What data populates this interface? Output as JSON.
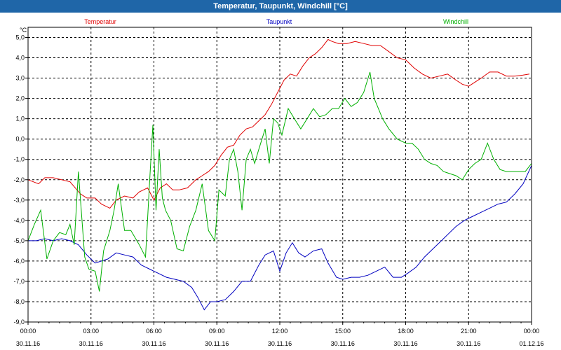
{
  "window": {
    "title": "Temperatur, Taupunkt, Windchill [°C]"
  },
  "chart_data": {
    "type": "line",
    "title": "Temperatur, Taupunkt, Windchill [°C]",
    "ylabel": "°C",
    "ylim": [
      -9.0,
      5.5
    ],
    "xlim": [
      0,
      24
    ],
    "grid": true,
    "legend_placement": "top",
    "y_ticks": [
      "5,0",
      "4,0",
      "3,0",
      "2,0",
      "1,0",
      "0,0",
      "-1,0",
      "-2,0",
      "-3,0",
      "-4,0",
      "-5,0",
      "-6,0",
      "-7,0",
      "-8,0",
      "-9,0"
    ],
    "x_ticks": [
      {
        "time": "00:00",
        "date": "30.11.16"
      },
      {
        "time": "03:00",
        "date": "30.11.16"
      },
      {
        "time": "06:00",
        "date": "30.11.16"
      },
      {
        "time": "09:00",
        "date": "30.11.16"
      },
      {
        "time": "12:00",
        "date": "30.11.16"
      },
      {
        "time": "15:00",
        "date": "30.11.16"
      },
      {
        "time": "18:00",
        "date": "30.11.16"
      },
      {
        "time": "21:00",
        "date": "30.11.16"
      },
      {
        "time": "00:00",
        "date": "01.12.16"
      }
    ],
    "series": [
      {
        "name": "Temperatur",
        "color": "#e00000",
        "x": [
          0,
          0.5,
          0.8,
          1.2,
          1.6,
          2,
          2.5,
          2.8,
          3.2,
          3.5,
          3.9,
          4.2,
          4.6,
          5,
          5.3,
          5.7,
          5.9,
          6,
          6.3,
          6.6,
          6.9,
          7.2,
          7.6,
          8,
          8.3,
          8.6,
          8.9,
          9.2,
          9.5,
          9.8,
          10.1,
          10.4,
          10.7,
          11,
          11.3,
          11.6,
          11.9,
          12.2,
          12.5,
          12.8,
          13.1,
          13.4,
          13.7,
          14,
          14.3,
          14.5,
          14.8,
          15.2,
          15.6,
          16,
          16.4,
          16.8,
          17.2,
          17.6,
          18,
          18.4,
          18.8,
          19.2,
          19.6,
          20,
          20.4,
          20.7,
          21,
          21.3,
          21.6,
          22,
          22.4,
          22.8,
          23.2,
          23.6,
          23.9
        ],
        "values": [
          -2.0,
          -2.2,
          -1.9,
          -1.9,
          -2.0,
          -2.1,
          -2.7,
          -2.9,
          -2.9,
          -3.2,
          -3.4,
          -3.0,
          -2.8,
          -2.9,
          -2.6,
          -2.4,
          -2.8,
          -3.0,
          -2.4,
          -2.2,
          -2.5,
          -2.5,
          -2.4,
          -2.0,
          -1.8,
          -1.6,
          -1.3,
          -0.8,
          -0.4,
          -0.3,
          0.2,
          0.5,
          0.6,
          0.9,
          1.2,
          1.7,
          2.3,
          2.9,
          3.2,
          3.1,
          3.6,
          4.0,
          4.2,
          4.5,
          4.9,
          4.8,
          4.7,
          4.7,
          4.8,
          4.7,
          4.6,
          4.6,
          4.3,
          4.0,
          3.9,
          3.5,
          3.2,
          3.0,
          3.1,
          3.2,
          2.9,
          2.7,
          2.6,
          2.8,
          3.0,
          3.3,
          3.3,
          3.1,
          3.1,
          3.15,
          3.2
        ]
      },
      {
        "name": "Taupunkt",
        "color": "#0000c0",
        "x": [
          0,
          0.4,
          0.8,
          1.2,
          1.6,
          2,
          2.4,
          2.8,
          3.2,
          3.5,
          3.8,
          4.2,
          4.6,
          5,
          5.4,
          5.8,
          6,
          6.2,
          6.6,
          7,
          7.4,
          7.8,
          8.1,
          8.4,
          8.7,
          9,
          9.4,
          9.8,
          10.2,
          10.6,
          11,
          11.3,
          11.7,
          12,
          12.3,
          12.6,
          12.9,
          13.2,
          13.6,
          14,
          14.3,
          14.7,
          15,
          15.4,
          15.8,
          16.2,
          16.6,
          17,
          17.4,
          17.8,
          18.1,
          18.5,
          18.9,
          19.3,
          19.7,
          20,
          20.4,
          20.8,
          21.2,
          21.6,
          22,
          22.4,
          22.8,
          23.2,
          23.6,
          24
        ],
        "values": [
          -5.0,
          -5.0,
          -4.9,
          -5.0,
          -4.9,
          -5.0,
          -5.2,
          -5.7,
          -6.1,
          -6.0,
          -5.9,
          -5.6,
          -5.7,
          -5.8,
          -6.2,
          -6.4,
          -6.5,
          -6.6,
          -6.8,
          -6.9,
          -7.0,
          -7.3,
          -7.8,
          -8.4,
          -8.0,
          -8.0,
          -7.9,
          -7.5,
          -7.0,
          -7.0,
          -6.2,
          -5.7,
          -5.5,
          -6.5,
          -5.6,
          -5.1,
          -5.6,
          -5.8,
          -5.5,
          -5.4,
          -6.1,
          -6.8,
          -6.9,
          -6.8,
          -6.8,
          -6.7,
          -6.5,
          -6.3,
          -6.8,
          -6.8,
          -6.6,
          -6.3,
          -5.8,
          -5.4,
          -5.0,
          -4.7,
          -4.3,
          -4.0,
          -3.8,
          -3.6,
          -3.4,
          -3.2,
          -3.1,
          -2.7,
          -2.2,
          -1.3
        ]
      },
      {
        "name": "Windchill",
        "color": "#00b000",
        "x": [
          0,
          0.3,
          0.6,
          0.9,
          1.2,
          1.5,
          1.8,
          2,
          2.2,
          2.4,
          2.7,
          2.9,
          3.2,
          3.4,
          3.6,
          3.9,
          4.1,
          4.3,
          4.6,
          4.9,
          5.3,
          5.6,
          5.8,
          5.95,
          6.1,
          6.25,
          6.4,
          6.55,
          6.8,
          7.1,
          7.4,
          7.7,
          8,
          8.3,
          8.6,
          8.9,
          9.1,
          9.4,
          9.6,
          9.8,
          10,
          10.2,
          10.4,
          10.6,
          10.8,
          11,
          11.3,
          11.5,
          11.7,
          11.9,
          12.1,
          12.4,
          12.7,
          13,
          13.3,
          13.6,
          13.9,
          14.2,
          14.5,
          14.8,
          15.1,
          15.4,
          15.7,
          16,
          16.3,
          16.5,
          16.7,
          16.9,
          17.2,
          17.6,
          18,
          18.3,
          18.6,
          18.9,
          19.2,
          19.5,
          19.8,
          20.1,
          20.4,
          20.7,
          21,
          21.3,
          21.6,
          21.9,
          22.2,
          22.5,
          22.8,
          23.1,
          23.4,
          23.7,
          24
        ],
        "values": [
          -5.0,
          -4.2,
          -3.5,
          -5.9,
          -5.0,
          -4.6,
          -4.7,
          -4.2,
          -5.2,
          -1.6,
          -5.8,
          -6.4,
          -6.5,
          -7.5,
          -5.5,
          -4.5,
          -3.5,
          -2.2,
          -4.5,
          -4.5,
          -5.2,
          -5.8,
          -2.0,
          0.7,
          -3.5,
          -0.5,
          -2.9,
          -3.5,
          -4.0,
          -5.4,
          -5.5,
          -4.3,
          -3.5,
          -2.2,
          -4.5,
          -5.0,
          -2.5,
          -2.8,
          -1.0,
          -0.5,
          -1.6,
          -3.5,
          -1.0,
          -0.5,
          -1.2,
          -0.5,
          0.5,
          -1.2,
          1.0,
          0.8,
          0.2,
          1.5,
          1.0,
          0.5,
          1.0,
          1.5,
          1.1,
          1.2,
          1.5,
          1.5,
          2.0,
          1.6,
          1.8,
          2.3,
          3.3,
          2.0,
          1.5,
          1.0,
          0.5,
          0.0,
          -0.2,
          -0.2,
          -0.5,
          -1.0,
          -1.2,
          -1.3,
          -1.6,
          -1.7,
          -1.8,
          -2.0,
          -1.5,
          -1.2,
          -1.0,
          -0.2,
          -1.0,
          -1.5,
          -1.6,
          -1.6,
          -1.6,
          -1.6,
          -1.2
        ]
      }
    ]
  }
}
